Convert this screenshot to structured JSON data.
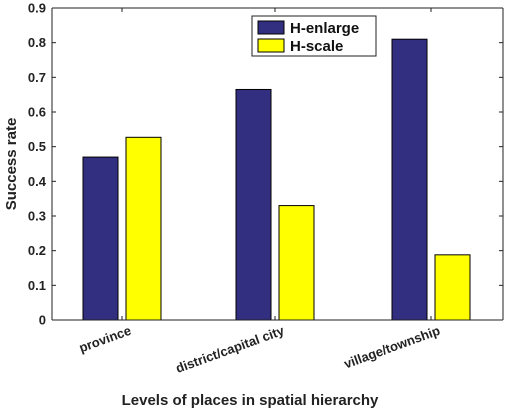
{
  "chart_data": {
    "type": "bar",
    "categories": [
      "province",
      "district/capital city",
      "village/township"
    ],
    "series": [
      {
        "name": "H-enlarge",
        "values": [
          0.47,
          0.665,
          0.81
        ],
        "color": "#332f80"
      },
      {
        "name": "H-scale",
        "values": [
          0.527,
          0.33,
          0.188
        ],
        "color": "#ffff00"
      }
    ],
    "xlabel": "Levels of places in spatial hierarchy",
    "ylabel": "Success rate",
    "ylim": [
      0,
      0.9
    ],
    "yticks": [
      "0",
      "0.1",
      "0.2",
      "0.3",
      "0.4",
      "0.5",
      "0.6",
      "0.7",
      "0.8",
      "0.9"
    ],
    "grid": false,
    "legend_position": "top-right"
  }
}
